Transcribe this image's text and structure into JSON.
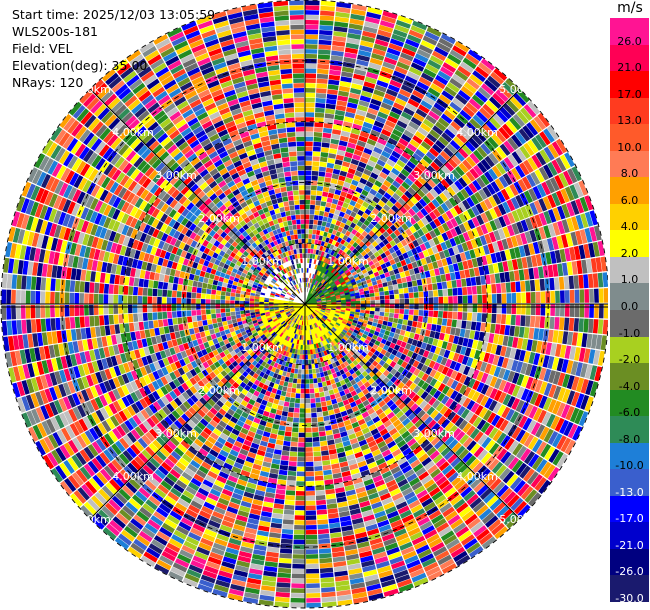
{
  "meta": {
    "start_time_label": "Start time: 2025/12/03 13:05:59",
    "instrument": "WLS200s-181",
    "field_label": "Field: VEL",
    "elevation_label": "Elevation(deg): 35.00",
    "nrays_label": "NRays: 120"
  },
  "chart_data": {
    "type": "heatmap",
    "projection": "polar-ppi",
    "field": "VEL",
    "elevation_deg": 35.0,
    "n_rays": 120,
    "range_rings": [
      "1.00km",
      "2.00km",
      "3.00km",
      "4.00km",
      "5.00km"
    ],
    "colorbar": {
      "unit": "m/s",
      "ticks": [
        "26.0",
        "21.0",
        "17.0",
        "13.0",
        "10.0",
        "8.0",
        "6.0",
        "4.0",
        "2.0",
        "1.0",
        "0.0",
        "-1.0",
        "-2.0",
        "-4.0",
        "-6.0",
        "-8.0",
        "-10.0",
        "-13.0",
        "-17.0",
        "-21.0",
        "-26.0",
        "-30.0"
      ],
      "colors": [
        "#ff1493",
        "#ff0055",
        "#ff0000",
        "#ff3b1f",
        "#ff5a2a",
        "#ff7b55",
        "#ffa000",
        "#ffd000",
        "#ffff00",
        "#c0c0c0",
        "#7f8c8d",
        "#6b6b6b",
        "#a8d020",
        "#6b8e23",
        "#228b22",
        "#2e8b57",
        "#1e7fd8",
        "#3a5fcd",
        "#0000ff",
        "#0000cd",
        "#000080",
        "#1a1a6e"
      ]
    },
    "velocity_bins": [
      26.0,
      21.0,
      17.0,
      13.0,
      10.0,
      8.0,
      6.0,
      4.0,
      2.0,
      1.0,
      0.0,
      -1.0,
      -2.0,
      -4.0,
      -6.0,
      -8.0,
      -10.0,
      -13.0,
      -17.0,
      -21.0,
      -26.0,
      -30.0
    ],
    "near_field": {
      "positive_wedge_color": "#ffff00",
      "negative_wedge_color": "#228b22"
    }
  }
}
